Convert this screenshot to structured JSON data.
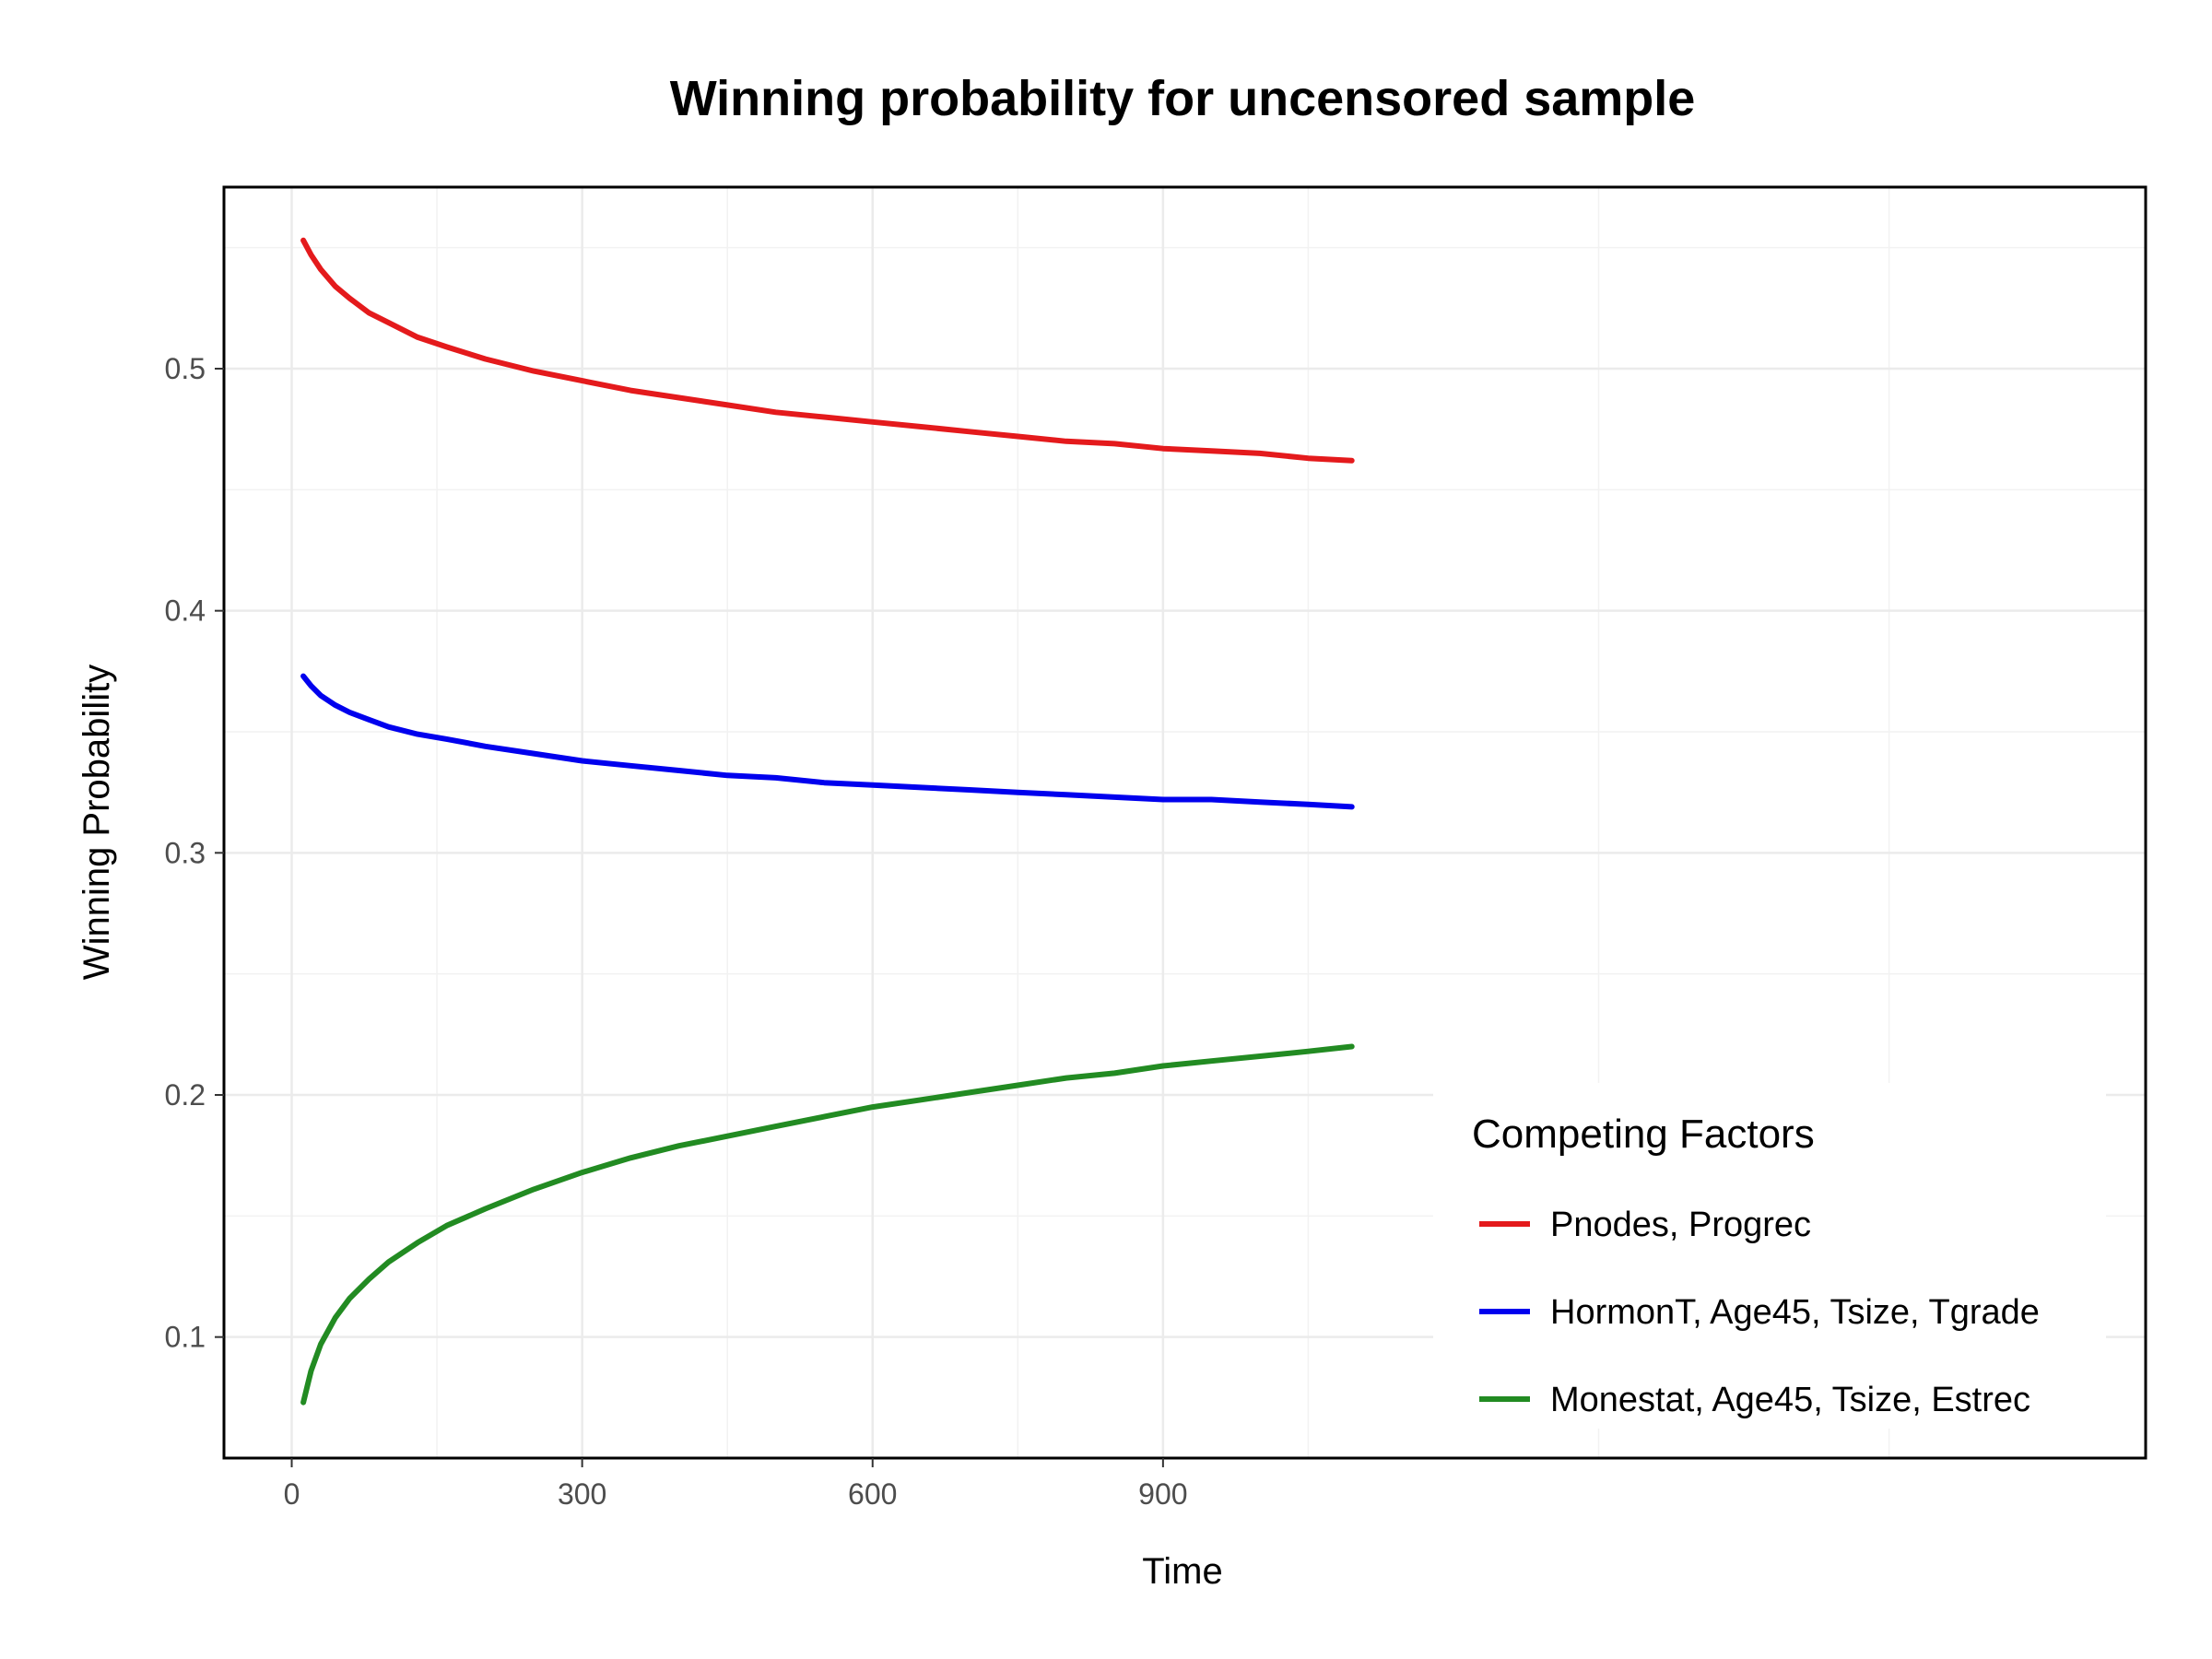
{
  "chart_data": {
    "type": "line",
    "title": "Winning probability for uncensored sample",
    "xlabel": "Time",
    "ylabel": "Winning Probability",
    "xlim": [
      -70,
      1915
    ],
    "ylim": [
      0.05,
      0.575
    ],
    "xticks": [
      0,
      300,
      600,
      900
    ],
    "xtick_labels": [
      "0",
      "300",
      "600",
      "900"
    ],
    "yticks": [
      0.1,
      0.2,
      0.3,
      0.4,
      0.5
    ],
    "ytick_labels": [
      "0.1",
      "0.2",
      "0.3",
      "0.4",
      "0.5"
    ],
    "grid": true,
    "legend": {
      "title": "Competing Factors",
      "placement": "bottom-right"
    },
    "series": [
      {
        "name": "Pnodes, Progrec",
        "color": "#e41a1c",
        "x": [
          12,
          20,
          30,
          45,
          60,
          80,
          100,
          130,
          160,
          200,
          250,
          300,
          350,
          400,
          450,
          500,
          550,
          600,
          650,
          700,
          750,
          800,
          850,
          900,
          950,
          1000,
          1050,
          1095
        ],
        "y": [
          0.553,
          0.547,
          0.541,
          0.534,
          0.529,
          0.523,
          0.519,
          0.513,
          0.509,
          0.504,
          0.499,
          0.495,
          0.491,
          0.488,
          0.485,
          0.482,
          0.48,
          0.478,
          0.476,
          0.474,
          0.472,
          0.47,
          0.469,
          0.467,
          0.466,
          0.465,
          0.463,
          0.462
        ]
      },
      {
        "name": "HormonT, Age45, Tsize, Tgrade",
        "color": "#0000ee",
        "x": [
          12,
          20,
          30,
          45,
          60,
          80,
          100,
          130,
          160,
          200,
          250,
          300,
          350,
          400,
          450,
          500,
          550,
          600,
          650,
          700,
          750,
          800,
          850,
          900,
          950,
          1000,
          1050,
          1095
        ],
        "y": [
          0.373,
          0.369,
          0.365,
          0.361,
          0.358,
          0.355,
          0.352,
          0.349,
          0.347,
          0.344,
          0.341,
          0.338,
          0.336,
          0.334,
          0.332,
          0.331,
          0.329,
          0.328,
          0.327,
          0.326,
          0.325,
          0.324,
          0.323,
          0.322,
          0.322,
          0.321,
          0.32,
          0.319
        ]
      },
      {
        "name": "Monestat, Age45, Tsize, Estrec",
        "color": "#228b22",
        "x": [
          12,
          20,
          30,
          45,
          60,
          80,
          100,
          130,
          160,
          200,
          250,
          300,
          350,
          400,
          450,
          500,
          550,
          600,
          650,
          700,
          750,
          800,
          850,
          900,
          950,
          1000,
          1050,
          1095
        ],
        "y": [
          0.073,
          0.086,
          0.097,
          0.108,
          0.116,
          0.124,
          0.131,
          0.139,
          0.146,
          0.153,
          0.161,
          0.168,
          0.174,
          0.179,
          0.183,
          0.187,
          0.191,
          0.195,
          0.198,
          0.201,
          0.204,
          0.207,
          0.209,
          0.212,
          0.214,
          0.216,
          0.218,
          0.22
        ]
      }
    ]
  }
}
